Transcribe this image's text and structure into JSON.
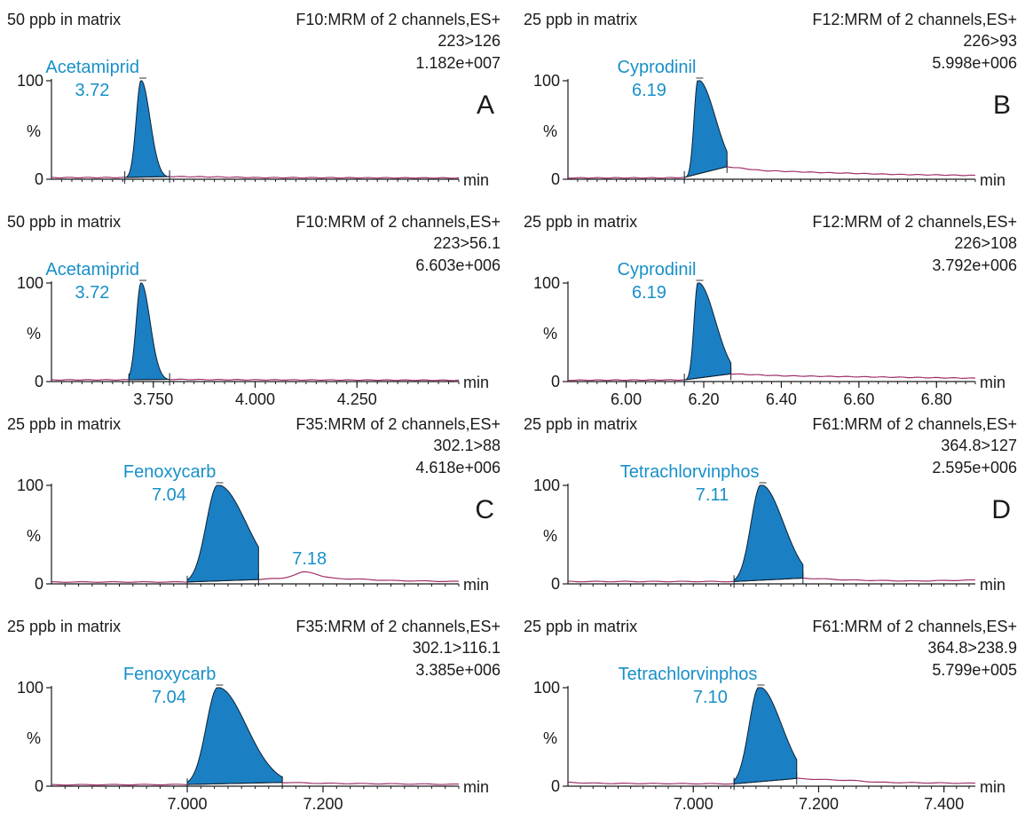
{
  "chart_data": [
    {
      "type": "line",
      "panel": "A",
      "sample": "50 ppb in matrix",
      "function": "F10:MRM of 2 channels,ES+",
      "transition": "223>126",
      "intensity": "1.182e+007",
      "compound": "Acetamiprid",
      "rt_label": "3.72",
      "ylabel": "%",
      "xlabel": "min",
      "yticks": [
        "0",
        "100"
      ],
      "ylim": [
        0,
        100
      ],
      "xlim": [
        3.5,
        4.5
      ],
      "xticks": [],
      "peak_rt": 3.72,
      "peak_sigma": 0.012,
      "peak_tailing": 0.01,
      "integration": [
        3.68,
        3.79
      ],
      "baseline": [
        [
          3.5,
          0.8
        ],
        [
          3.6,
          0.8
        ],
        [
          3.68,
          0.9
        ],
        [
          3.75,
          2.0
        ],
        [
          3.9,
          1.5
        ],
        [
          4.0,
          0.8
        ],
        [
          4.5,
          0.4
        ]
      ],
      "extra_peaks": []
    },
    {
      "type": "line",
      "panel": "",
      "sample": "50 ppb in matrix",
      "function": "F10:MRM of 2 channels,ES+",
      "transition": "223>56.1",
      "intensity": "6.603e+006",
      "compound": "Acetamiprid",
      "rt_label": "3.72",
      "ylabel": "%",
      "xlabel": "min",
      "yticks": [
        "0",
        "100"
      ],
      "ylim": [
        0,
        100
      ],
      "xlim": [
        3.5,
        4.5
      ],
      "xticks": [
        "3.750",
        "4.000",
        "4.250"
      ],
      "peak_rt": 3.72,
      "peak_sigma": 0.012,
      "peak_tailing": 0.01,
      "integration": [
        3.69,
        3.79
      ],
      "baseline": [
        [
          3.5,
          0.8
        ],
        [
          3.69,
          0.9
        ],
        [
          3.75,
          1.5
        ],
        [
          3.9,
          1.0
        ],
        [
          4.5,
          0.4
        ]
      ],
      "extra_peaks": []
    },
    {
      "type": "line",
      "panel": "B",
      "sample": "25 ppb in matrix",
      "function": "F12:MRM of 2 channels,ES+",
      "transition": "226>93",
      "intensity": "5.998e+006",
      "compound": "Cyprodinil",
      "rt_label": "6.19",
      "ylabel": "%",
      "xlabel": "min",
      "yticks": [
        "0",
        "100"
      ],
      "ylim": [
        0,
        100
      ],
      "xlim": [
        5.85,
        6.9
      ],
      "xticks": [],
      "peak_rt": 6.185,
      "peak_sigma": 0.01,
      "peak_tailing": 0.035,
      "integration": [
        6.15,
        6.26
      ],
      "baseline": [
        [
          5.85,
          0.5
        ],
        [
          6.1,
          0.5
        ],
        [
          6.15,
          1.0
        ],
        [
          6.26,
          12
        ],
        [
          6.35,
          8
        ],
        [
          6.5,
          6
        ],
        [
          6.7,
          4
        ],
        [
          6.9,
          3
        ]
      ],
      "extra_peaks": []
    },
    {
      "type": "line",
      "panel": "",
      "sample": "25 ppb in matrix",
      "function": "F12:MRM of 2 channels,ES+",
      "transition": "226>108",
      "intensity": "3.792e+006",
      "compound": "Cyprodinil",
      "rt_label": "6.19",
      "ylabel": "%",
      "xlabel": "min",
      "yticks": [
        "0",
        "100"
      ],
      "ylim": [
        0,
        100
      ],
      "xlim": [
        5.85,
        6.9
      ],
      "xticks": [
        "6.00",
        "6.20",
        "6.40",
        "6.60",
        "6.80"
      ],
      "peak_rt": 6.185,
      "peak_sigma": 0.01,
      "peak_tailing": 0.035,
      "integration": [
        6.15,
        6.27
      ],
      "baseline": [
        [
          5.85,
          0.5
        ],
        [
          6.15,
          0.8
        ],
        [
          6.27,
          7
        ],
        [
          6.4,
          5
        ],
        [
          6.6,
          4
        ],
        [
          6.9,
          2.5
        ]
      ],
      "extra_peaks": []
    },
    {
      "type": "line",
      "panel": "C",
      "sample": "25 ppb in matrix",
      "function": "F35:MRM of 2 channels,ES+",
      "transition": "302.1>88",
      "intensity": "4.618e+006",
      "compound": "Fenoxycarb",
      "rt_label": "7.04",
      "ylabel": "%",
      "xlabel": "min",
      "yticks": [
        "0",
        "100"
      ],
      "ylim": [
        0,
        100
      ],
      "xlim": [
        6.8,
        7.4
      ],
      "xticks": [],
      "peak_rt": 7.045,
      "peak_sigma": 0.017,
      "peak_tailing": 0.025,
      "integration": [
        7.0,
        7.105
      ],
      "baseline": [
        [
          6.8,
          1.0
        ],
        [
          7.0,
          1.0
        ],
        [
          7.105,
          3.5
        ],
        [
          7.14,
          5
        ],
        [
          7.17,
          8
        ],
        [
          7.2,
          5
        ],
        [
          7.25,
          4
        ],
        [
          7.3,
          2.5
        ],
        [
          7.4,
          1.5
        ]
      ],
      "extra_peaks": [
        {
          "rt": 7.18,
          "label": "7.18"
        }
      ]
    },
    {
      "type": "line",
      "panel": "",
      "sample": "25 ppb in matrix",
      "function": "F35:MRM of 2 channels,ES+",
      "transition": "302.1>116.1",
      "intensity": "3.385e+006",
      "compound": "Fenoxycarb",
      "rt_label": "7.04",
      "ylabel": "%",
      "xlabel": "min",
      "yticks": [
        "0",
        "100"
      ],
      "ylim": [
        0,
        100
      ],
      "xlim": [
        6.8,
        7.4
      ],
      "xticks": [
        "7.000",
        "7.200"
      ],
      "peak_rt": 7.045,
      "peak_sigma": 0.017,
      "peak_tailing": 0.025,
      "integration": [
        7.0,
        7.14
      ],
      "baseline": [
        [
          6.8,
          0.5
        ],
        [
          7.0,
          0.8
        ],
        [
          7.14,
          3
        ],
        [
          7.2,
          2
        ],
        [
          7.3,
          1.5
        ],
        [
          7.4,
          1
        ]
      ],
      "extra_peaks": []
    },
    {
      "type": "line",
      "panel": "D",
      "sample": "25 ppb in matrix",
      "function": "F61:MRM of 2 channels,ES+",
      "transition": "364.8>127",
      "intensity": "2.595e+006",
      "compound": "Tetrachlorvinphos",
      "rt_label": "7.11",
      "ylabel": "%",
      "xlabel": "min",
      "yticks": [
        "0",
        "100"
      ],
      "ylim": [
        0,
        100
      ],
      "xlim": [
        6.8,
        7.45
      ],
      "xticks": [],
      "peak_rt": 7.108,
      "peak_sigma": 0.016,
      "peak_tailing": 0.02,
      "integration": [
        7.065,
        7.175
      ],
      "baseline": [
        [
          6.8,
          1.5
        ],
        [
          7.065,
          1.5
        ],
        [
          7.175,
          5
        ],
        [
          7.25,
          3
        ],
        [
          7.35,
          2
        ],
        [
          7.45,
          3
        ]
      ],
      "extra_peaks": []
    },
    {
      "type": "line",
      "panel": "",
      "sample": "25 ppb in matrix",
      "function": "F61:MRM of 2 channels,ES+",
      "transition": "364.8>238.9",
      "intensity": "5.799e+005",
      "compound": "Tetrachlorvinphos",
      "rt_label": "7.10",
      "ylabel": "%",
      "xlabel": "min",
      "yticks": [
        "0",
        "100"
      ],
      "ylim": [
        0,
        100
      ],
      "xlim": [
        6.8,
        7.45
      ],
      "xticks": [
        "7.000",
        "7.200",
        "7.400"
      ],
      "peak_rt": 7.105,
      "peak_sigma": 0.016,
      "peak_tailing": 0.02,
      "integration": [
        7.065,
        7.165
      ],
      "baseline": [
        [
          6.8,
          3
        ],
        [
          6.85,
          2
        ],
        [
          7.065,
          1.5
        ],
        [
          7.165,
          7
        ],
        [
          7.2,
          6
        ],
        [
          7.25,
          5
        ],
        [
          7.3,
          3
        ],
        [
          7.45,
          2
        ]
      ],
      "extra_peaks": []
    }
  ],
  "colors": {
    "peak_fill": "#1b7fc4",
    "baseline_trace": "#a0306a",
    "label": "#1890c8",
    "axis": "#1a1a1a"
  }
}
